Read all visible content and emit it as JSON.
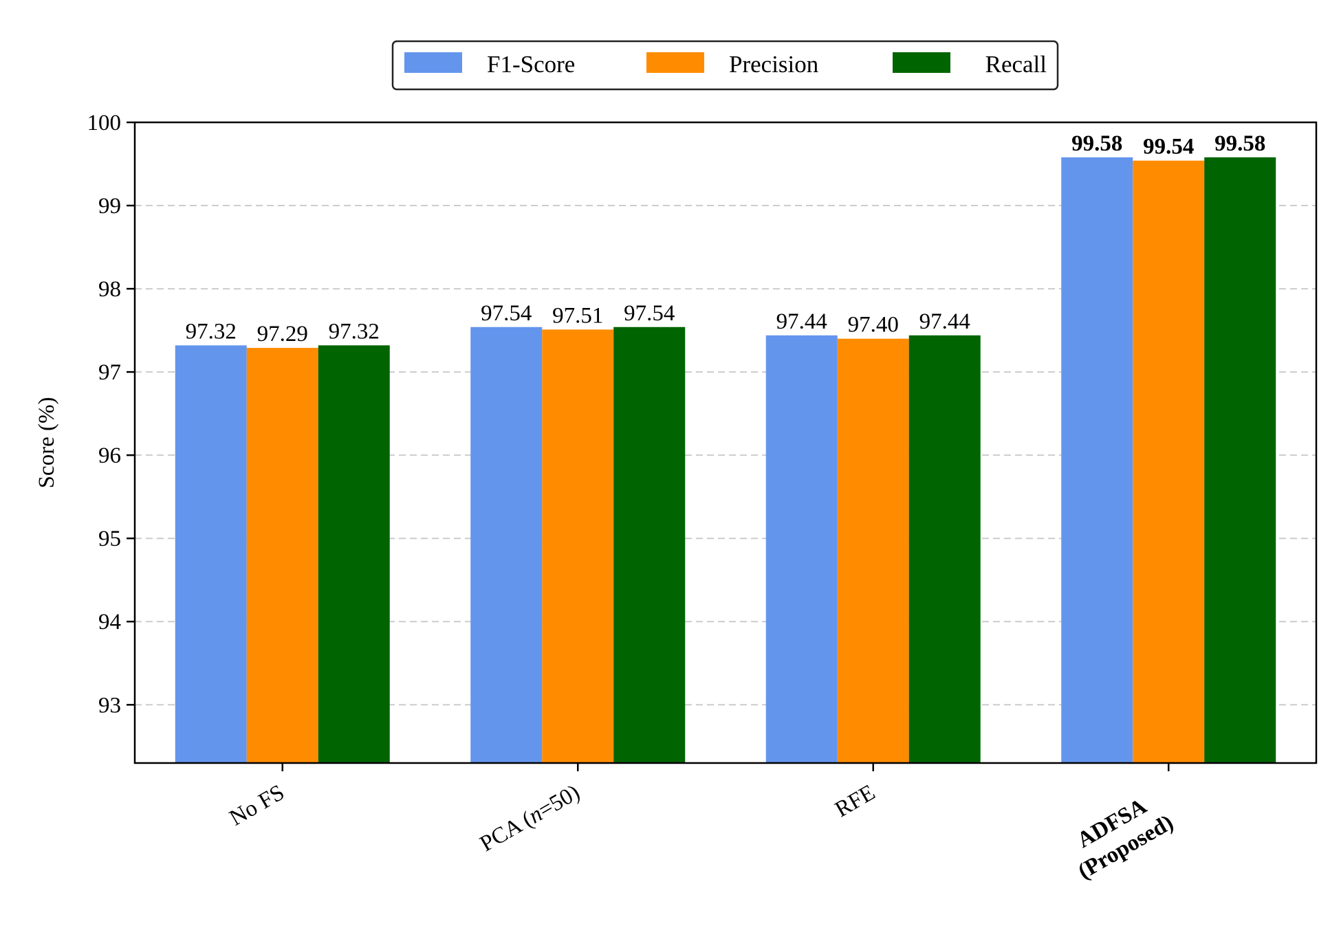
{
  "chart_data": {
    "type": "bar",
    "categories": [
      {
        "lines": [
          "No FS"
        ],
        "bold": false
      },
      {
        "lines": [
          "PCA (",
          "n",
          "=50)"
        ],
        "italic_index": 1,
        "bold": false
      },
      {
        "lines": [
          "RFE"
        ],
        "bold": false
      },
      {
        "lines": [
          "ADFSA",
          "(Proposed)"
        ],
        "bold": true
      }
    ],
    "series": [
      {
        "name": "F1-Score",
        "color": "#6495ED",
        "values": [
          97.32,
          97.54,
          97.44,
          99.58
        ],
        "labels": [
          "97.32",
          "97.54",
          "97.44",
          "99.58"
        ]
      },
      {
        "name": "Precision",
        "color": "#FF8C00",
        "values": [
          97.29,
          97.51,
          97.4,
          99.54
        ],
        "labels": [
          "97.29",
          "97.51",
          "97.40",
          "99.54"
        ]
      },
      {
        "name": "Recall",
        "color": "#006400",
        "values": [
          97.32,
          97.54,
          97.44,
          99.58
        ],
        "labels": [
          "97.32",
          "97.54",
          "97.44",
          "99.58"
        ]
      }
    ],
    "ylabel": "Score (%)",
    "ylim": [
      92.3,
      100
    ],
    "yticks": [
      93,
      94,
      95,
      96,
      97,
      98,
      99,
      100
    ],
    "grid": "y-dashed",
    "legend": "top-center"
  }
}
